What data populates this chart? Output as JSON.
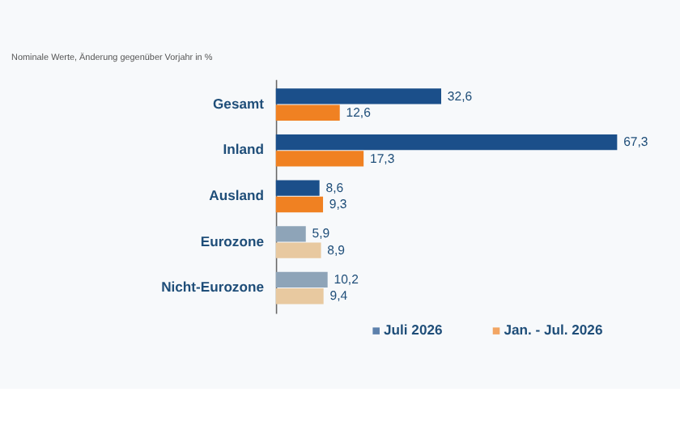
{
  "chart_data": {
    "type": "bar",
    "orientation": "horizontal",
    "title": "Nominale Werte, Änderung gegenüber Vorjahr in %",
    "categories": [
      "Gesamt",
      "Inland",
      "Ausland",
      "Eurozone",
      "Nicht-Eurozone"
    ],
    "series": [
      {
        "name": "Juli 2026",
        "color": "#1b4f8a",
        "colors": [
          "#1b4f8a",
          "#1b4f8a",
          "#1b4f8a",
          "#8ea4b8",
          "#8ea4b8"
        ],
        "values": [
          32.6,
          67.3,
          8.6,
          5.9,
          10.2
        ],
        "value_labels": [
          "32,6",
          "67,3",
          "8,6",
          "5,9",
          "10,2"
        ]
      },
      {
        "name": "Jan. - Jul. 2026",
        "color": "#f08122",
        "colors": [
          "#f08122",
          "#f08122",
          "#f08122",
          "#e8c9a0",
          "#e8c9a0"
        ],
        "values": [
          12.6,
          17.3,
          9.3,
          8.9,
          9.4
        ],
        "value_labels": [
          "12,6",
          "17,3",
          "9,3",
          "8,9",
          "9,4"
        ]
      }
    ],
    "legend": "bottom"
  }
}
